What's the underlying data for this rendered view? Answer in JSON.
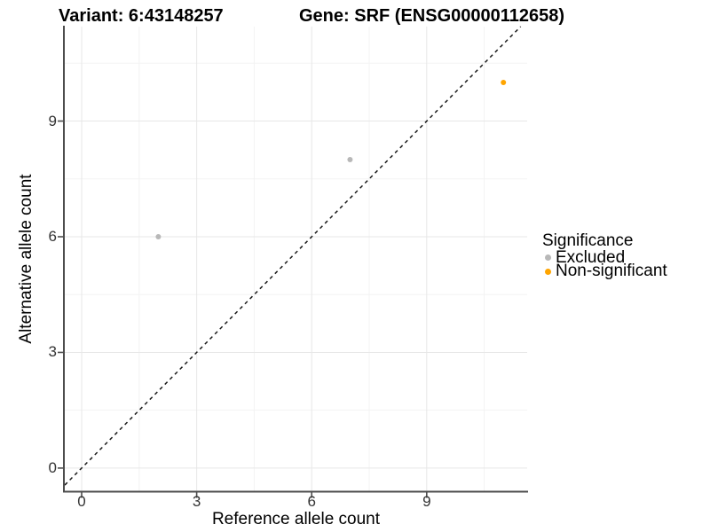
{
  "header": {
    "variant_title": "Variant: 6:43148257",
    "gene_title": "Gene: SRF (ENSG00000112658)"
  },
  "legend": {
    "title": "Significance",
    "items": [
      {
        "label": "Excluded",
        "color": "#b8b8b8"
      },
      {
        "label": "Non-significant",
        "color": "#ffa500"
      }
    ]
  },
  "chart_data": {
    "type": "scatter",
    "title": "Variant: 6:43148257 / Gene: SRF (ENSG00000112658)",
    "xlabel": "Reference allele count",
    "ylabel": "Alternative allele count",
    "xlim": [
      -0.44,
      11.62
    ],
    "ylim": [
      -0.6,
      11.45
    ],
    "x_ticks": [
      0,
      3,
      6,
      9
    ],
    "y_ticks": [
      0,
      3,
      6,
      9
    ],
    "x_minor_ticks": [
      1.5,
      4.5,
      7.5,
      10.5
    ],
    "y_minor_ticks": [
      1.5,
      4.5,
      7.5,
      10.5
    ],
    "grid": true,
    "legend_position": "right",
    "legend_title": "Significance",
    "series": [
      {
        "name": "Excluded",
        "color": "#b8b8b8",
        "points": [
          [
            2,
            6
          ],
          [
            7,
            8
          ]
        ]
      },
      {
        "name": "Non-significant",
        "color": "#ffa500",
        "points": [
          [
            11,
            10
          ]
        ]
      }
    ],
    "identity_line": {
      "slope": 1,
      "intercept": 0,
      "linetype": "dashed",
      "color": "#1a1a1a"
    }
  },
  "colors": {
    "excluded": "#b8b8b8",
    "non_significant": "#ffa500",
    "gridline_major": "#e7e7e7",
    "gridline_minor": "#f3f3f3",
    "axis_line": "#4d4d4d"
  }
}
